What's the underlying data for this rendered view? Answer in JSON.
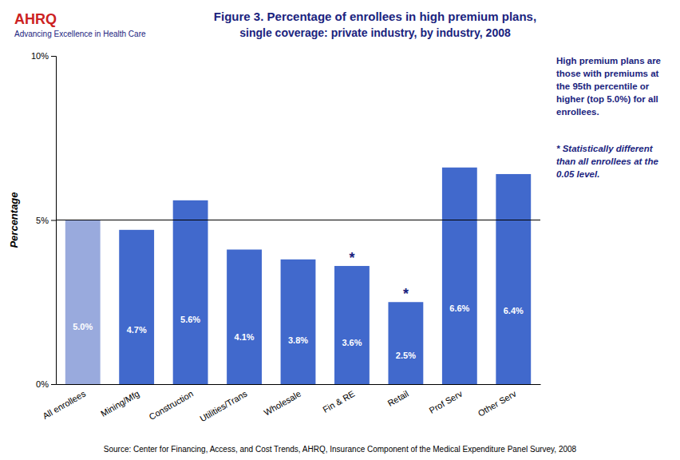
{
  "chart_data": {
    "type": "bar",
    "title": "Figure 3. Percentage of enrollees in high premium plans,",
    "subtitle": "single coverage: private industry, by industry, 2008",
    "categories": [
      "All enrollees",
      "Mining/Mfg",
      "Construction",
      "Utilities/Trans",
      "Wholesale",
      "Fin & RE",
      "Retail",
      "Prof Serv",
      "Other Serv"
    ],
    "values": [
      5.0,
      4.7,
      5.6,
      4.1,
      3.8,
      3.6,
      2.5,
      6.6,
      6.4
    ],
    "value_labels": [
      "5.0%",
      "4.7%",
      "5.6%",
      "4.1%",
      "3.8%",
      "3.6%",
      "2.5%",
      "6.6%",
      "6.4%"
    ],
    "data_labels": true,
    "colors": [
      "#99AADD",
      "#4169CC",
      "#4169CC",
      "#4169CC",
      "#4169CC",
      "#4169CC",
      "#4169CC",
      "#4169CC",
      "#4169CC"
    ],
    "statistically_different": [
      false,
      false,
      false,
      false,
      false,
      true,
      true,
      false,
      false
    ],
    "significance_mark": "*",
    "reference_line": 5.0,
    "ylabel": "Percentage",
    "ylim": [
      0,
      10
    ],
    "yticks": [
      {
        "value": 0,
        "label": "0%"
      },
      {
        "value": 5,
        "label": "5%"
      },
      {
        "value": 10,
        "label": "10%"
      }
    ],
    "grid": false,
    "annotations": [
      "AHRQ",
      "Advancing Excellence in Health Care",
      "High premium plans are those with premiums at the 95th percentile or higher (top 5.0%) for all enrollees.",
      "* Statistically different than all enrollees at the 0.05 level.",
      "Source: Center for Financing, Access, and Cost Trends, AHRQ, Insurance Component of the Medical Expenditure Panel Survey, 2008"
    ]
  }
}
